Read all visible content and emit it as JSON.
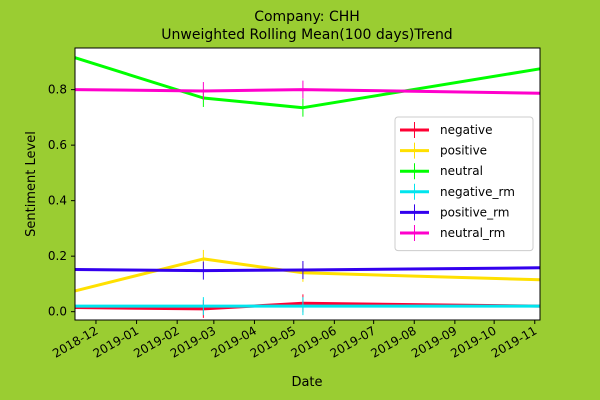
{
  "figure": {
    "background": "#9ACD32"
  },
  "chart_data": {
    "type": "line",
    "title": "Company: CHH",
    "subtitle": "Unweighted Rolling Mean(100 days)Trend",
    "xlabel": "Date",
    "ylabel": "Sentiment Level",
    "x_ticks": [
      "2018-12",
      "2019-01",
      "2019-02",
      "2019-03",
      "2019-04",
      "2019-05",
      "2019-06",
      "2019-07",
      "2019-08",
      "2019-09",
      "2019-10",
      "2019-11"
    ],
    "y_ticks": [
      "0.0",
      "0.2",
      "0.4",
      "0.6",
      "0.8"
    ],
    "xlim": [
      "2018-11-15",
      "2019-11-05"
    ],
    "ylim": [
      -0.03,
      0.95
    ],
    "grid": false,
    "legend_position": "center-right",
    "x": [
      "2018-11-15",
      "2019-02-21",
      "2019-05-08",
      "2019-11-05"
    ],
    "series": [
      {
        "name": "negative",
        "color": "#FF0033",
        "values": [
          0.015,
          0.01,
          0.03,
          0.02
        ]
      },
      {
        "name": "positive",
        "color": "#FFE000",
        "values": [
          0.075,
          0.19,
          0.14,
          0.115
        ]
      },
      {
        "name": "neutral",
        "color": "#00FF00",
        "values": [
          0.915,
          0.77,
          0.735,
          0.875
        ]
      },
      {
        "name": "negative_rm",
        "color": "#00E5EE",
        "values": [
          0.02,
          0.02,
          0.02,
          0.02
        ]
      },
      {
        "name": "positive_rm",
        "color": "#3300EE",
        "values": [
          0.152,
          0.148,
          0.15,
          0.158
        ]
      },
      {
        "name": "neutral_rm",
        "color": "#FF00CC",
        "values": [
          0.8,
          0.795,
          0.8,
          0.787
        ]
      }
    ]
  }
}
